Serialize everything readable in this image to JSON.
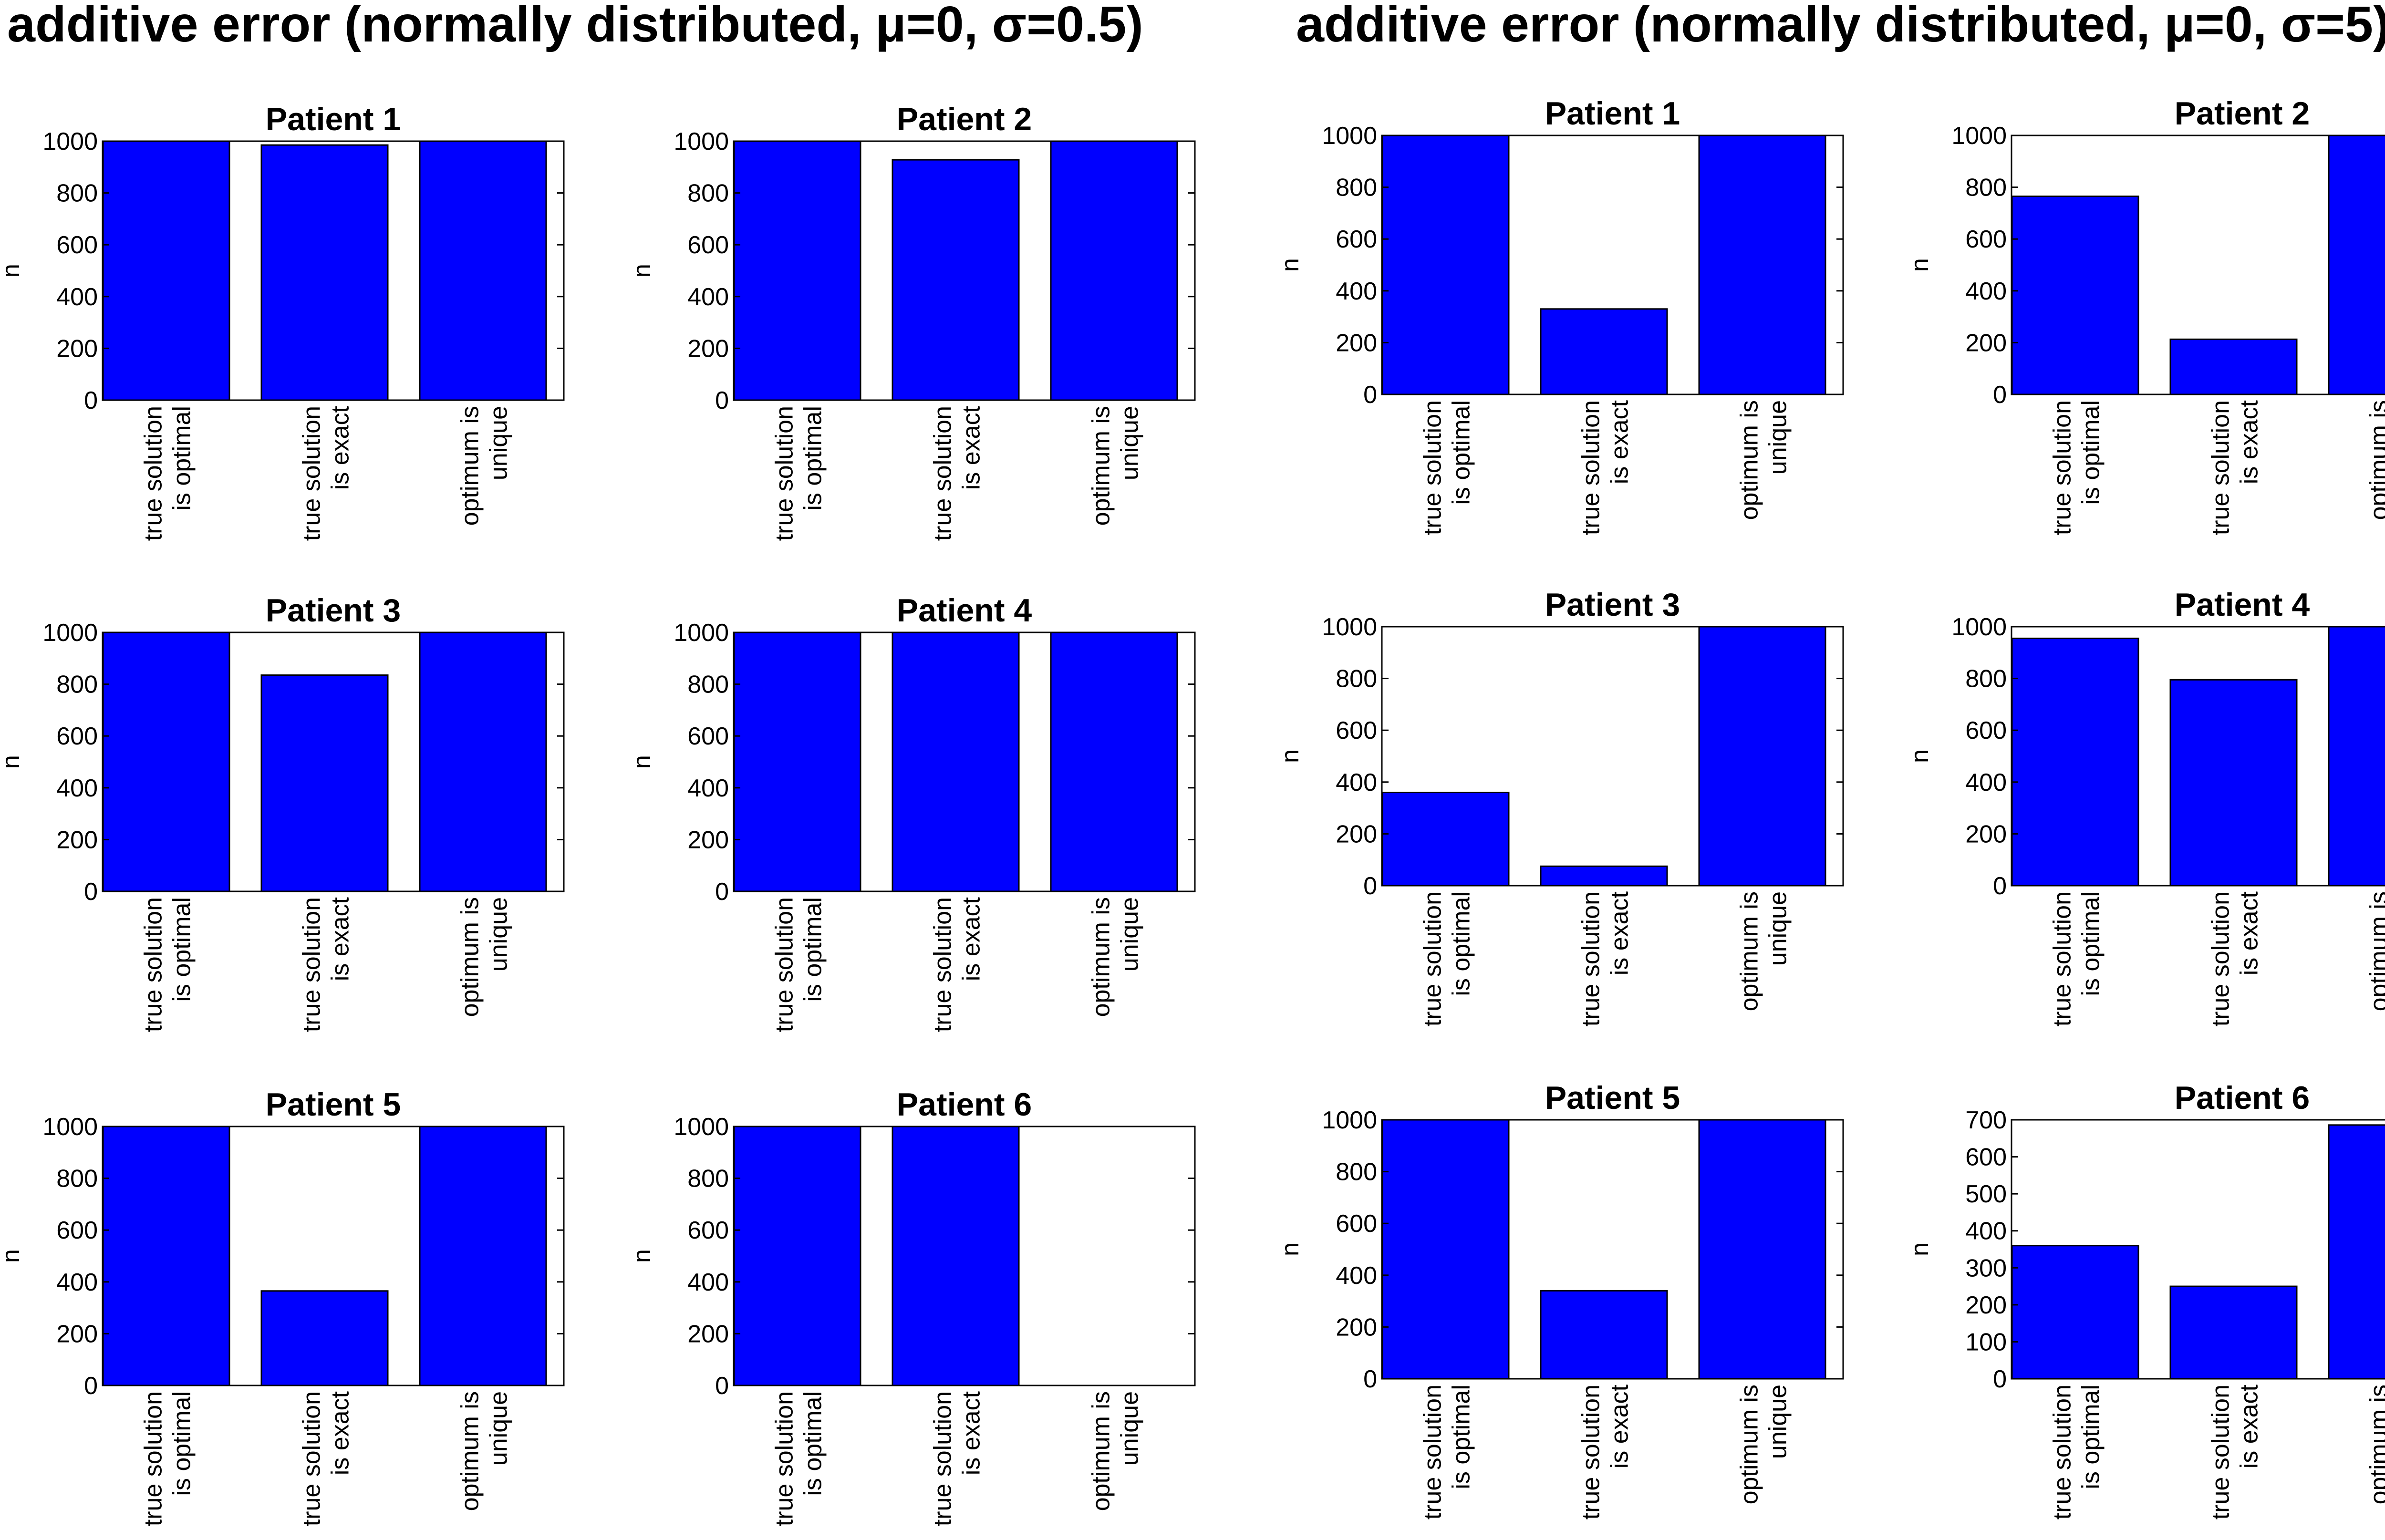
{
  "bar_color": "#0000ff",
  "chart_data": [
    {
      "type": "bar",
      "group_title": "additive error (normally distributed, μ=0, σ=0.5)",
      "categories": [
        [
          "true solution",
          "is optimal"
        ],
        [
          "true solution",
          "is exact"
        ],
        [
          "optimum is",
          "unique"
        ]
      ],
      "ylabel": "n",
      "panels": [
        {
          "title": "Patient 1",
          "values": [
            1000,
            985,
            1000
          ],
          "ylim": [
            0,
            1000
          ],
          "yticks": [
            0,
            200,
            400,
            600,
            800,
            1000
          ]
        },
        {
          "title": "Patient 2",
          "values": [
            1000,
            928,
            1000
          ],
          "ylim": [
            0,
            1000
          ],
          "yticks": [
            0,
            200,
            400,
            600,
            800,
            1000
          ]
        },
        {
          "title": "Patient 3",
          "values": [
            1000,
            835,
            1000
          ],
          "ylim": [
            0,
            1000
          ],
          "yticks": [
            0,
            200,
            400,
            600,
            800,
            1000
          ]
        },
        {
          "title": "Patient 4",
          "values": [
            1000,
            1000,
            1000
          ],
          "ylim": [
            0,
            1000
          ],
          "yticks": [
            0,
            200,
            400,
            600,
            800,
            1000
          ]
        },
        {
          "title": "Patient 5",
          "values": [
            1000,
            365,
            1000
          ],
          "ylim": [
            0,
            1000
          ],
          "yticks": [
            0,
            200,
            400,
            600,
            800,
            1000
          ]
        },
        {
          "title": "Patient 6",
          "values": [
            1000,
            1000,
            0
          ],
          "ylim": [
            0,
            1000
          ],
          "yticks": [
            0,
            200,
            400,
            600,
            800,
            1000
          ]
        }
      ]
    },
    {
      "type": "bar",
      "group_title": "additive error (normally distributed, μ=0, σ=5)",
      "categories": [
        [
          "true solution",
          "is optimal"
        ],
        [
          "true solution",
          "is exact"
        ],
        [
          "optimum is",
          "unique"
        ]
      ],
      "ylabel": "n",
      "panels": [
        {
          "title": "Patient 1",
          "values": [
            1000,
            330,
            1000
          ],
          "ylim": [
            0,
            1000
          ],
          "yticks": [
            0,
            200,
            400,
            600,
            800,
            1000
          ]
        },
        {
          "title": "Patient 2",
          "values": [
            765,
            213,
            1000
          ],
          "ylim": [
            0,
            1000
          ],
          "yticks": [
            0,
            200,
            400,
            600,
            800,
            1000
          ]
        },
        {
          "title": "Patient 3",
          "values": [
            360,
            75,
            1000
          ],
          "ylim": [
            0,
            1000
          ],
          "yticks": [
            0,
            200,
            400,
            600,
            800,
            1000
          ]
        },
        {
          "title": "Patient 4",
          "values": [
            955,
            795,
            1000
          ],
          "ylim": [
            0,
            1000
          ],
          "yticks": [
            0,
            200,
            400,
            600,
            800,
            1000
          ]
        },
        {
          "title": "Patient 5",
          "values": [
            1000,
            340,
            1000
          ],
          "ylim": [
            0,
            1000
          ],
          "yticks": [
            0,
            200,
            400,
            600,
            800,
            1000
          ]
        },
        {
          "title": "Patient 6",
          "values": [
            360,
            250,
            686
          ],
          "ylim": [
            0,
            700
          ],
          "yticks": [
            0,
            100,
            200,
            300,
            400,
            500,
            600,
            700
          ]
        }
      ]
    }
  ]
}
